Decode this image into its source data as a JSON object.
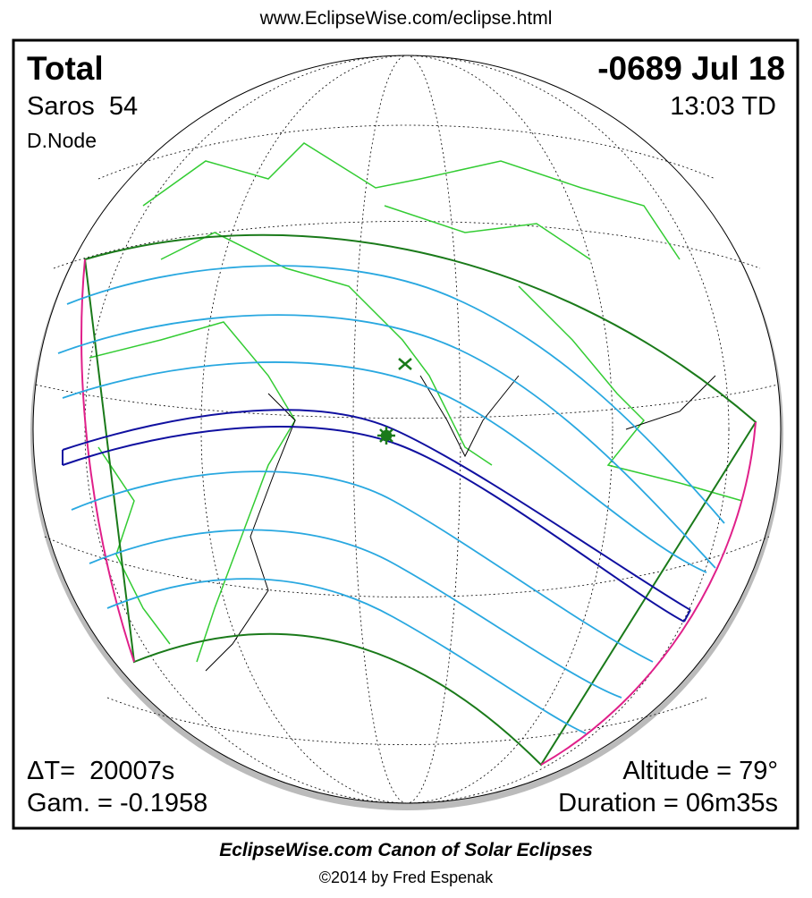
{
  "header": {
    "url": "www.EclipseWise.com/eclipse.html"
  },
  "panel": {
    "eclipse_type": "Total",
    "saros": "Saros  54",
    "node": "D.Node",
    "date": "-0689 Jul 18",
    "time": "13:03 TD",
    "delta_t": "ΔT=  20007s",
    "gamma": "Gam. = -0.1958",
    "altitude": "Altitude = 79°",
    "duration": "Duration = 06m35s"
  },
  "footer": {
    "title": "EclipseWise.com Canon of Solar Eclipses",
    "credit": "©2014 by Fred Espenak"
  }
}
